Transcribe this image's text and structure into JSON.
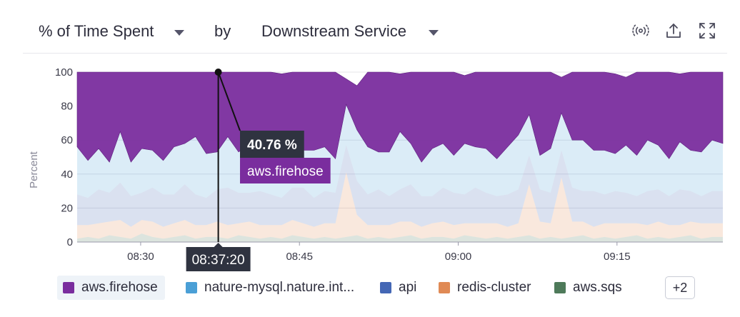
{
  "toolbar": {
    "metric": "% of Time Spent",
    "by": "by",
    "group_by": "Downstream Service"
  },
  "tooltip": {
    "value": "40.76 %",
    "series": "aws.firehose",
    "time": "08:37:20"
  },
  "legend": {
    "items": [
      {
        "label": "aws.firehose",
        "color": "#7a2d9e"
      },
      {
        "label": "nature-mysql.nature.int...",
        "color": "#4a9fd6"
      },
      {
        "label": "api",
        "color": "#4467b5"
      },
      {
        "label": "redis-cluster",
        "color": "#e08a55"
      },
      {
        "label": "aws.sqs",
        "color": "#4e7a5a"
      }
    ],
    "more": "+2"
  },
  "chart_data": {
    "type": "area",
    "stacked": true,
    "ylabel": "Percent",
    "ylim": [
      0,
      100
    ],
    "yticks": [
      0,
      20,
      40,
      60,
      80,
      100
    ],
    "xlim": [
      "08:24",
      "09:25"
    ],
    "xticks": [
      "08:30",
      "08:45",
      "09:00",
      "09:15"
    ],
    "grid": true,
    "series": [
      {
        "name": "aws.sqs",
        "color": "#4e7a5a",
        "values": [
          2,
          3,
          2,
          4,
          3,
          2,
          5,
          3,
          2,
          3,
          4,
          2,
          3,
          3,
          2,
          4,
          3,
          2,
          3,
          2,
          4,
          3,
          2,
          3,
          2,
          3,
          4,
          2,
          3,
          2,
          3,
          4,
          2,
          3,
          3,
          2,
          4,
          3,
          2,
          3,
          2,
          3,
          4,
          2,
          3,
          2,
          3,
          4,
          2,
          3,
          2,
          3,
          4,
          2,
          3,
          2,
          3,
          4,
          2,
          3,
          3
        ]
      },
      {
        "name": "redis-cluster",
        "color": "#e08a55",
        "values": [
          8,
          7,
          9,
          8,
          10,
          7,
          8,
          9,
          7,
          8,
          9,
          8,
          7,
          9,
          8,
          7,
          9,
          8,
          7,
          8,
          9,
          8,
          7,
          8,
          9,
          38,
          12,
          8,
          7,
          8,
          9,
          8,
          7,
          8,
          9,
          8,
          7,
          8,
          9,
          8,
          7,
          8,
          30,
          10,
          8,
          36,
          9,
          8,
          7,
          8,
          9,
          8,
          7,
          8,
          9,
          8,
          7,
          8,
          9,
          8,
          8
        ]
      },
      {
        "name": "api",
        "color": "#4467b5",
        "values": [
          18,
          16,
          20,
          17,
          22,
          18,
          16,
          20,
          19,
          17,
          21,
          18,
          16,
          19,
          22,
          18,
          17,
          20,
          18,
          16,
          19,
          21,
          17,
          19,
          18,
          16,
          20,
          18,
          21,
          17,
          19,
          22,
          18,
          16,
          20,
          19,
          17,
          21,
          18,
          16,
          19,
          20,
          17,
          19,
          18,
          16,
          20,
          18,
          21,
          17,
          19,
          18,
          16,
          20,
          19,
          17,
          21,
          18,
          16,
          19,
          19
        ]
      },
      {
        "name": "nature-mysql.nature.int...",
        "color": "#4a9fd6",
        "values": [
          28,
          22,
          24,
          18,
          30,
          20,
          26,
          22,
          20,
          28,
          24,
          34,
          26,
          22,
          30,
          24,
          28,
          20,
          26,
          32,
          24,
          22,
          28,
          26,
          20,
          24,
          30,
          28,
          22,
          26,
          34,
          24,
          20,
          28,
          26,
          22,
          30,
          24,
          26,
          22,
          28,
          32,
          24,
          20,
          26,
          22,
          28,
          30,
          24,
          26,
          22,
          28,
          24,
          30,
          26,
          22,
          28,
          24,
          26,
          30,
          28
        ]
      },
      {
        "name": "aws.firehose",
        "color": "#7a2d9e",
        "values": [
          44,
          52,
          45,
          53,
          40,
          53,
          45,
          46,
          52,
          44,
          42,
          38,
          48,
          47,
          41,
          47,
          43,
          50,
          46,
          41,
          44,
          46,
          46,
          44,
          51,
          15,
          26,
          44,
          47,
          47,
          34,
          42,
          53,
          45,
          42,
          49,
          40,
          44,
          45,
          51,
          44,
          37,
          25,
          49,
          45,
          21,
          42,
          42,
          46,
          46,
          47,
          40,
          49,
          41,
          43,
          51,
          40,
          46,
          47,
          41,
          42
        ]
      }
    ]
  }
}
